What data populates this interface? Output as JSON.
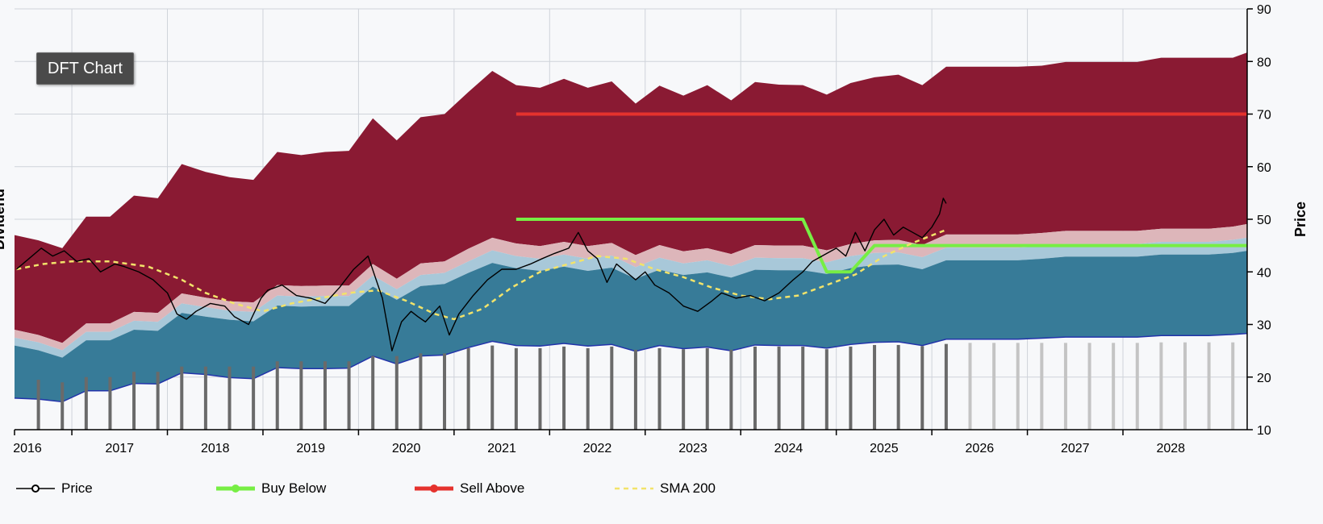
{
  "badge": {
    "label": "DFT Chart"
  },
  "colors": {
    "plot_bg": "#f7f8fa",
    "grid": "#cfd3da",
    "band_top": "#8a1a33",
    "band_pink": "#ddb6ba",
    "band_lightblue": "#a8c8d9",
    "band_teal": "#377b98",
    "dividend_line": "#2233aa",
    "price": "#000000",
    "buy_below": "#77ee44",
    "sell_above": "#e5322d",
    "sma200": "#f2e36a",
    "bar_actual": "#6a6a6a",
    "bar_estimate": "#c4c4c4"
  },
  "chart_data": {
    "type": "area",
    "ylabel_right": "Price",
    "ylabel_left": "Dividend",
    "ylim": [
      10,
      90
    ],
    "y_ticks": [
      "10",
      "20",
      "30",
      "40",
      "50",
      "60",
      "70",
      "80",
      "90"
    ],
    "xlim": [
      2015.9,
      2028.8
    ],
    "x_ticks": [
      "2016",
      "2017",
      "2018",
      "2019",
      "2020",
      "2021",
      "2022",
      "2023",
      "2024",
      "2025",
      "2026",
      "2027",
      "2028"
    ],
    "grid": true,
    "x": [
      2015.9,
      2016.15,
      2016.4,
      2016.65,
      2016.9,
      2017.15,
      2017.4,
      2017.65,
      2017.9,
      2018.15,
      2018.4,
      2018.65,
      2018.9,
      2019.15,
      2019.4,
      2019.65,
      2019.9,
      2020.15,
      2020.4,
      2020.65,
      2020.9,
      2021.15,
      2021.4,
      2021.65,
      2021.9,
      2022.15,
      2022.4,
      2022.65,
      2022.9,
      2023.15,
      2023.4,
      2023.65,
      2023.9,
      2024.15,
      2024.4,
      2024.65,
      2024.9,
      2025.15,
      2025.4,
      2025.65,
      2025.9,
      2026.15,
      2026.4,
      2026.65,
      2026.9,
      2027.15,
      2027.4,
      2027.65,
      2027.9,
      2028.15,
      2028.4,
      2028.65,
      2028.8
    ],
    "bands": [
      {
        "name": "fair_value_base",
        "values": [
          16.0,
          15.8,
          15.3,
          17.4,
          17.4,
          18.8,
          18.7,
          20.8,
          20.5,
          19.9,
          19.7,
          21.8,
          21.6,
          21.6,
          21.7,
          24.0,
          22.5,
          24.0,
          24.2,
          25.6,
          26.8,
          26.0,
          25.9,
          26.4,
          25.9,
          26.2,
          24.9,
          26.0,
          25.4,
          25.7,
          25.0,
          26.1,
          26.0,
          26.0,
          25.5,
          26.2,
          26.6,
          26.7,
          26.0,
          27.2,
          27.2,
          27.2,
          27.2,
          27.4,
          27.6,
          27.6,
          27.6,
          27.6,
          27.9,
          27.9,
          27.9,
          28.1,
          28.3
        ]
      },
      {
        "name": "teal",
        "values": [
          26.0,
          25.1,
          23.7,
          27.0,
          27.0,
          29.0,
          28.8,
          32.2,
          31.5,
          30.9,
          30.6,
          33.6,
          33.4,
          33.5,
          33.5,
          37.2,
          34.7,
          37.3,
          37.7,
          39.8,
          41.7,
          40.7,
          40.2,
          41.0,
          40.2,
          40.8,
          38.7,
          40.4,
          39.4,
          39.9,
          38.9,
          40.4,
          40.3,
          40.3,
          39.6,
          40.7,
          41.3,
          41.4,
          40.5,
          42.2,
          42.2,
          42.2,
          42.2,
          42.5,
          42.9,
          42.9,
          42.9,
          42.9,
          43.3,
          43.3,
          43.3,
          43.6,
          44.0
        ]
      },
      {
        "name": "light_blue",
        "values": [
          27.5,
          26.6,
          25.1,
          28.6,
          28.6,
          30.7,
          30.5,
          34.0,
          33.3,
          32.6,
          32.4,
          35.5,
          35.3,
          35.4,
          35.4,
          39.3,
          36.7,
          39.4,
          39.8,
          42.0,
          44.1,
          43.0,
          42.5,
          43.3,
          42.5,
          43.1,
          40.9,
          42.7,
          41.6,
          42.2,
          41.1,
          42.7,
          42.6,
          42.6,
          41.8,
          43.0,
          43.6,
          43.7,
          42.8,
          44.6,
          44.6,
          44.6,
          44.6,
          44.9,
          45.3,
          45.3,
          45.3,
          45.3,
          45.7,
          45.7,
          45.7,
          46.1,
          46.5
        ]
      },
      {
        "name": "pink",
        "values": [
          29.0,
          28.0,
          26.5,
          30.2,
          30.2,
          32.4,
          32.2,
          35.9,
          35.1,
          34.4,
          34.2,
          37.5,
          37.3,
          37.4,
          37.4,
          41.5,
          38.7,
          41.6,
          42.0,
          44.4,
          46.5,
          45.4,
          44.9,
          45.7,
          44.9,
          45.5,
          43.2,
          45.1,
          43.9,
          44.5,
          43.4,
          45.1,
          45.0,
          45.0,
          44.1,
          45.3,
          46.0,
          46.1,
          45.1,
          47.1,
          47.1,
          47.1,
          47.1,
          47.4,
          47.8,
          47.8,
          47.8,
          47.8,
          48.2,
          48.2,
          48.2,
          48.6,
          49.1
        ]
      },
      {
        "name": "top",
        "values": [
          47.0,
          46.0,
          44.5,
          50.5,
          50.5,
          54.5,
          54.0,
          60.5,
          59.0,
          58.0,
          57.5,
          62.8,
          62.2,
          62.8,
          63.0,
          69.2,
          65.0,
          69.4,
          70.0,
          74.2,
          78.2,
          75.5,
          75.0,
          76.7,
          75.0,
          76.2,
          72.0,
          75.4,
          73.5,
          75.5,
          72.6,
          76.1,
          75.6,
          75.5,
          73.7,
          75.9,
          77.0,
          77.5,
          75.5,
          79.0,
          79.0,
          79.0,
          79.0,
          79.2,
          79.9,
          79.9,
          79.9,
          79.9,
          80.7,
          80.7,
          80.7,
          80.7,
          81.7
        ]
      }
    ],
    "dividend_bars": {
      "actual_x": [
        2016.15,
        2016.4,
        2016.65,
        2016.9,
        2017.15,
        2017.4,
        2017.65,
        2017.9,
        2018.15,
        2018.4,
        2018.65,
        2018.9,
        2019.15,
        2019.4,
        2019.65,
        2019.9,
        2020.15,
        2020.4,
        2020.65,
        2020.9,
        2021.15,
        2021.4,
        2021.65,
        2021.9,
        2022.15,
        2022.4,
        2022.65,
        2022.9,
        2023.15,
        2023.4,
        2023.65,
        2023.9,
        2024.15,
        2024.4,
        2024.65,
        2024.9,
        2025.15,
        2025.4,
        2025.65
      ],
      "actual_y": [
        19.5,
        19.0,
        20.0,
        20.0,
        21.0,
        21.0,
        22.0,
        22.0,
        22.0,
        22.0,
        23.0,
        23.0,
        23.0,
        23.0,
        24.0,
        24.0,
        24.5,
        24.5,
        25.5,
        26.0,
        25.5,
        25.5,
        25.8,
        25.5,
        25.8,
        25.2,
        25.5,
        25.3,
        25.5,
        25.2,
        25.8,
        25.8,
        25.8,
        25.3,
        25.8,
        26.1,
        26.1,
        25.9,
        26.3
      ],
      "estimate_x": [
        2025.9,
        2026.15,
        2026.4,
        2026.65,
        2026.9,
        2027.15,
        2027.4,
        2027.65,
        2027.9,
        2028.15,
        2028.4,
        2028.65
      ],
      "estimate_y": [
        26.5,
        26.5,
        26.5,
        26.5,
        26.5,
        26.5,
        26.5,
        26.5,
        26.6,
        26.6,
        26.6,
        26.6
      ]
    },
    "series": [
      {
        "name": "Price",
        "x": [
          2015.92,
          2016.05,
          2016.18,
          2016.3,
          2016.42,
          2016.55,
          2016.68,
          2016.8,
          2016.95,
          2017.05,
          2017.2,
          2017.35,
          2017.5,
          2017.6,
          2017.7,
          2017.8,
          2017.95,
          2018.1,
          2018.2,
          2018.35,
          2018.48,
          2018.55,
          2018.7,
          2018.85,
          2019.0,
          2019.15,
          2019.3,
          2019.45,
          2019.6,
          2019.75,
          2019.85,
          2019.95,
          2020.05,
          2020.12,
          2020.2,
          2020.35,
          2020.45,
          2020.55,
          2020.7,
          2020.85,
          2021.0,
          2021.15,
          2021.3,
          2021.42,
          2021.55,
          2021.7,
          2021.8,
          2021.9,
          2022.0,
          2022.1,
          2022.2,
          2022.3,
          2022.4,
          2022.5,
          2022.6,
          2022.75,
          2022.9,
          2023.05,
          2023.2,
          2023.3,
          2023.45,
          2023.6,
          2023.75,
          2023.9,
          2024.05,
          2024.15,
          2024.25,
          2024.4,
          2024.5,
          2024.6,
          2024.7,
          2024.8,
          2024.9,
          2025.0,
          2025.1,
          2025.2,
          2025.3,
          2025.4,
          2025.5,
          2025.58,
          2025.62,
          2025.65
        ],
        "y": [
          40.5,
          42.5,
          44.5,
          43.0,
          44.0,
          42.0,
          42.5,
          40.0,
          41.5,
          41.0,
          40.0,
          38.5,
          36.0,
          32.0,
          31.0,
          32.5,
          34.0,
          33.5,
          31.5,
          30.0,
          35.0,
          36.5,
          37.5,
          35.5,
          35.0,
          34.0,
          37.0,
          40.5,
          43.0,
          35.0,
          25.0,
          30.5,
          32.5,
          31.5,
          30.5,
          33.5,
          28.0,
          32.0,
          35.5,
          38.5,
          40.5,
          40.5,
          41.5,
          42.5,
          43.5,
          44.5,
          47.5,
          44.0,
          42.5,
          38.0,
          41.5,
          40.0,
          38.5,
          40.0,
          37.5,
          36.0,
          33.5,
          32.5,
          34.5,
          36.0,
          35.0,
          35.5,
          34.5,
          36.0,
          38.5,
          40.0,
          42.0,
          43.5,
          44.5,
          43.0,
          47.5,
          44.0,
          48.0,
          50.0,
          47.0,
          48.5,
          47.5,
          46.5,
          48.5,
          51.0,
          54.0,
          53.0
        ]
      },
      {
        "name": "Buy Below",
        "x": [
          2021.15,
          2024.15,
          2024.4,
          2024.65,
          2024.9,
          2028.8
        ],
        "y": [
          50.0,
          50.0,
          40.0,
          40.0,
          45.0,
          45.0
        ]
      },
      {
        "name": "Sell Above",
        "x": [
          2021.15,
          2028.8
        ],
        "y": [
          70.0,
          70.0
        ]
      },
      {
        "name": "SMA 200",
        "x": [
          2015.92,
          2016.2,
          2016.5,
          2016.9,
          2017.3,
          2017.65,
          2017.9,
          2018.2,
          2018.5,
          2018.8,
          2019.1,
          2019.4,
          2019.7,
          2020.0,
          2020.3,
          2020.5,
          2020.8,
          2021.1,
          2021.4,
          2021.7,
          2022.0,
          2022.3,
          2022.6,
          2022.9,
          2023.2,
          2023.5,
          2023.8,
          2024.1,
          2024.4,
          2024.7,
          2025.0,
          2025.3,
          2025.65
        ],
        "y": [
          40.5,
          41.5,
          42.0,
          42.0,
          41.0,
          38.5,
          36.0,
          34.0,
          32.5,
          34.0,
          35.0,
          36.0,
          36.5,
          34.5,
          32.0,
          31.0,
          33.0,
          37.0,
          40.0,
          41.5,
          43.0,
          42.5,
          40.5,
          39.0,
          37.0,
          35.5,
          34.8,
          35.5,
          37.5,
          39.5,
          43.0,
          45.5,
          48.0
        ]
      }
    ],
    "legend": [
      {
        "label": "Price",
        "style": "line-hollow-dot"
      },
      {
        "label": "Buy Below",
        "style": "line-dot"
      },
      {
        "label": "Sell Above",
        "style": "line-dot"
      },
      {
        "label": "SMA 200",
        "style": "dashed"
      }
    ],
    "legend_position": "bottom-left"
  }
}
